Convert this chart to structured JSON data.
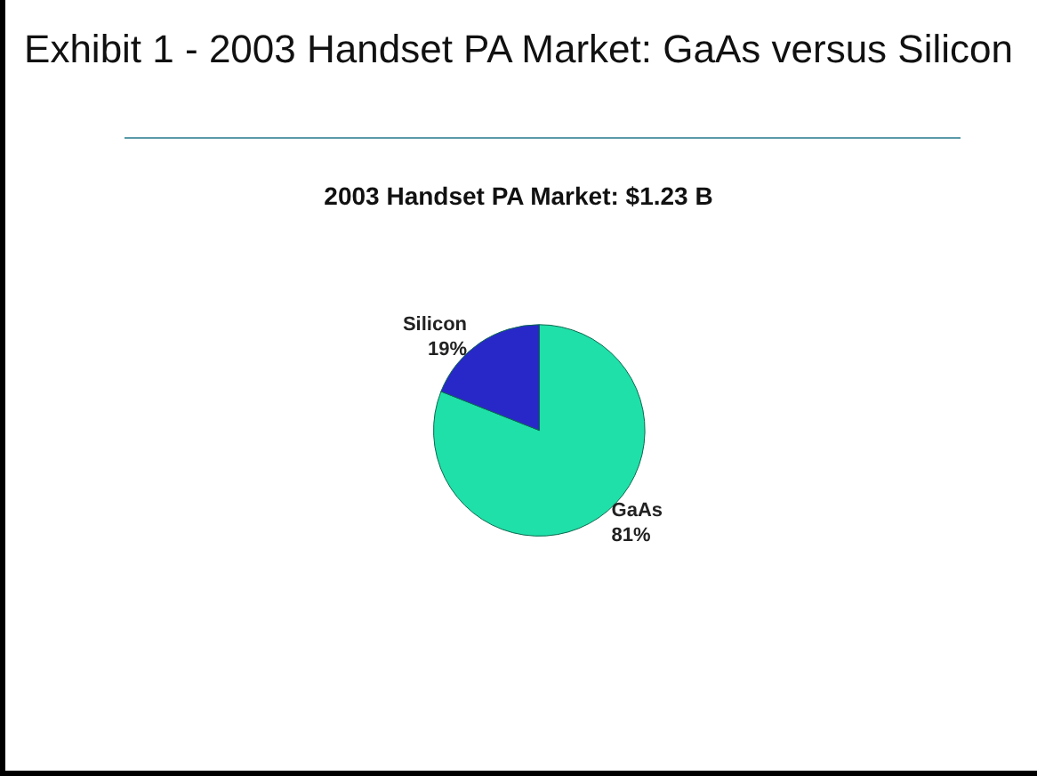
{
  "chart_data": {
    "type": "pie",
    "title": "Exhibit 1 - 2003 Handset PA Market: GaAs versus Silicon",
    "subtitle": "2003 Handset PA Market: $1.23 B",
    "categories": [
      "GaAs",
      "Silicon"
    ],
    "values": [
      81,
      19
    ],
    "value_labels": [
      "81%",
      "19%"
    ],
    "colors": [
      "#1fe0a8",
      "#2828c8"
    ],
    "legend": false
  }
}
